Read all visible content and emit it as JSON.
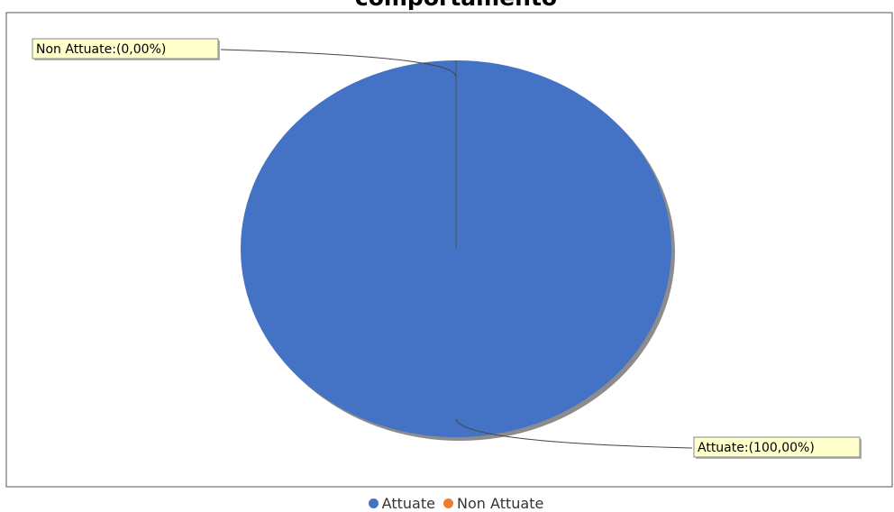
{
  "chart_data": {
    "type": "pie",
    "title": "comportamento",
    "slices": [
      {
        "name": "Attuate",
        "value": 100,
        "label": "Attuate:(100,00%)",
        "color": "#4472c4"
      },
      {
        "name": "Non Attuate",
        "value": 0,
        "label": "Non Attuate:(0,00%)",
        "color": "#ed7d31"
      }
    ],
    "legend": {
      "position": "bottom",
      "items": [
        {
          "label": "Attuate",
          "color": "#4472c4"
        },
        {
          "label": "Non Attuate",
          "color": "#ed7d31"
        }
      ]
    }
  }
}
